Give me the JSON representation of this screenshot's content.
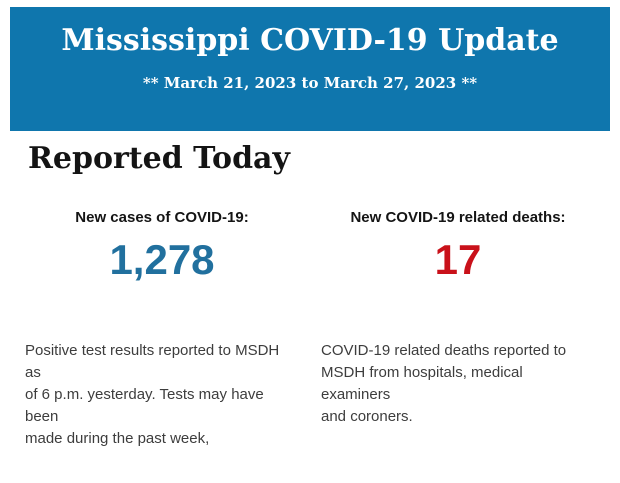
{
  "banner": {
    "title": "Mississippi COVID-19 Update",
    "date_range": "** March 21, 2023 to March 27, 2023 **",
    "background_color": "#0f76ad",
    "text_color": "#ffffff"
  },
  "section": {
    "heading": "Reported Today"
  },
  "stats": [
    {
      "label": "New cases of COVID-19:",
      "value": "1,278",
      "value_color": "#21709e",
      "description": "Positive test results reported to MSDH as\nof 6 p.m. yesterday. Tests may have been\nmade during the past week,"
    },
    {
      "label": "New COVID-19 related deaths:",
      "value": "17",
      "value_color": "#c9111a",
      "description": "COVID-19 related deaths reported to\nMSDH from hospitals, medical examiners\nand coroners."
    }
  ]
}
